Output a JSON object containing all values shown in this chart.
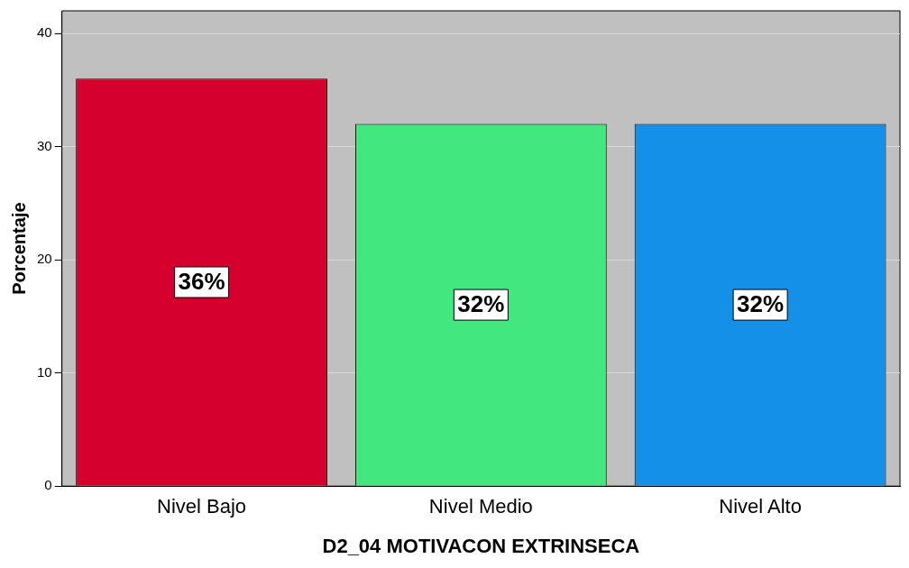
{
  "chart_data": {
    "type": "bar",
    "xlabel": "D2_04 MOTIVACON EXTRINSECA",
    "ylabel": "Porcentaje",
    "categories": [
      "Nivel Bajo",
      "Nivel Medio",
      "Nivel Alto"
    ],
    "values": [
      36,
      32,
      32
    ],
    "colors": [
      "#d5002e",
      "#42e87f",
      "#1590e8"
    ],
    "value_labels": [
      "36%",
      "32%",
      "32%"
    ],
    "ylim": [
      0,
      42
    ],
    "yticks": [
      0,
      10,
      20,
      30,
      40
    ],
    "grid": "y",
    "legend": false
  }
}
